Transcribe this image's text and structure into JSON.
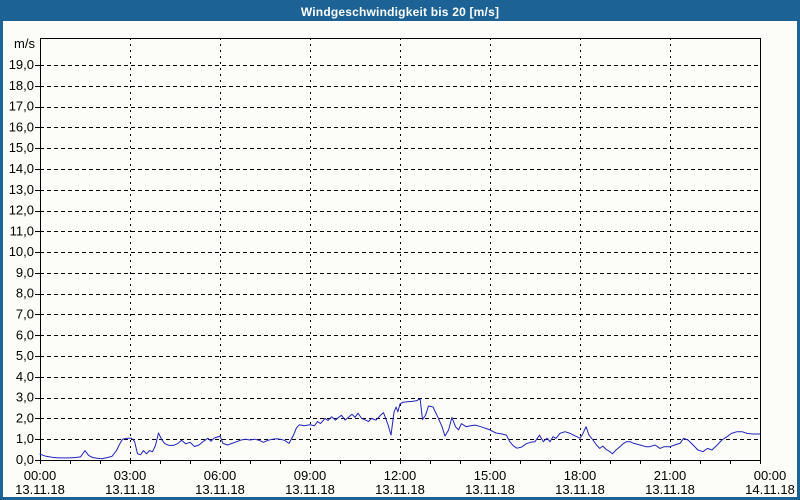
{
  "window": {
    "title": "Windgeschwindigkeit bis 20 [m/s]"
  },
  "colors": {
    "titlebar_blue": "#1d6295",
    "window_background": "#fcfdf8",
    "line_blue": "#2222bb",
    "grid_black": "#000000",
    "title_text": "#ffffff"
  },
  "chart_data": {
    "type": "line",
    "title": "Windgeschwindigkeit bis 20 [m/s]",
    "unit_label": "m/s",
    "xlabel": "",
    "ylabel": "m/s",
    "xlim_hours": [
      0,
      24
    ],
    "ylim": [
      0,
      20.3
    ],
    "grid": "dashed",
    "legend": "none",
    "y_tick_step": 1.0,
    "y_ticks": [
      {
        "value": 0,
        "label": "0,0"
      },
      {
        "value": 1,
        "label": "1,0"
      },
      {
        "value": 2,
        "label": "2,0"
      },
      {
        "value": 3,
        "label": "3,0"
      },
      {
        "value": 4,
        "label": "4,0"
      },
      {
        "value": 5,
        "label": "5,0"
      },
      {
        "value": 6,
        "label": "6,0"
      },
      {
        "value": 7,
        "label": "7,0"
      },
      {
        "value": 8,
        "label": "8,0"
      },
      {
        "value": 9,
        "label": "9,0"
      },
      {
        "value": 10,
        "label": "10,0"
      },
      {
        "value": 11,
        "label": "11,0"
      },
      {
        "value": 12,
        "label": "12,0"
      },
      {
        "value": 13,
        "label": "13,0"
      },
      {
        "value": 14,
        "label": "14,0"
      },
      {
        "value": 15,
        "label": "15,0"
      },
      {
        "value": 16,
        "label": "16,0"
      },
      {
        "value": 17,
        "label": "17,0"
      },
      {
        "value": 18,
        "label": "18,0"
      },
      {
        "value": 19,
        "label": "19,0"
      }
    ],
    "x_minor_tick_every_hours": 1,
    "x_major_ticks": [
      {
        "hour": 0,
        "time": "00:00",
        "date": "13.11.18"
      },
      {
        "hour": 3,
        "time": "03:00",
        "date": "13.11.18"
      },
      {
        "hour": 6,
        "time": "06:00",
        "date": "13.11.18"
      },
      {
        "hour": 9,
        "time": "09:00",
        "date": "13.11.18"
      },
      {
        "hour": 12,
        "time": "12:00",
        "date": "13.11.18"
      },
      {
        "hour": 15,
        "time": "15:00",
        "date": "13.11.18"
      },
      {
        "hour": 18,
        "time": "18:00",
        "date": "13.11.18"
      },
      {
        "hour": 21,
        "time": "21:00",
        "date": "13.11.18"
      },
      {
        "hour": 24,
        "time": "00:00",
        "date": "14.11.18"
      }
    ],
    "series": [
      {
        "name": "Windgeschwindigkeit",
        "unit": "m/s",
        "points": [
          [
            0,
            0.28
          ],
          [
            0.2,
            0.18
          ],
          [
            0.4,
            0.13
          ],
          [
            0.6,
            0.1
          ],
          [
            0.8,
            0.1
          ],
          [
            1,
            0.1
          ],
          [
            1.2,
            0.12
          ],
          [
            1.35,
            0.15
          ],
          [
            1.5,
            0.45
          ],
          [
            1.62,
            0.22
          ],
          [
            1.75,
            0.12
          ],
          [
            1.9,
            0.08
          ],
          [
            2.05,
            0.06
          ],
          [
            2.2,
            0.1
          ],
          [
            2.4,
            0.18
          ],
          [
            2.55,
            0.45
          ],
          [
            2.65,
            0.75
          ],
          [
            2.75,
            1
          ],
          [
            2.9,
            1.05
          ],
          [
            3.05,
            1.05
          ],
          [
            3.15,
            0.9
          ],
          [
            3.25,
            0.3
          ],
          [
            3.35,
            0.25
          ],
          [
            3.45,
            0.45
          ],
          [
            3.55,
            0.3
          ],
          [
            3.65,
            0.45
          ],
          [
            3.75,
            0.4
          ],
          [
            3.85,
            0.7
          ],
          [
            3.95,
            1.3
          ],
          [
            4.05,
            1
          ],
          [
            4.15,
            0.8
          ],
          [
            4.3,
            0.7
          ],
          [
            4.45,
            0.7
          ],
          [
            4.6,
            0.8
          ],
          [
            4.72,
            0.95
          ],
          [
            4.85,
            0.78
          ],
          [
            5,
            0.85
          ],
          [
            5.15,
            0.65
          ],
          [
            5.3,
            0.72
          ],
          [
            5.45,
            0.9
          ],
          [
            5.6,
            1.05
          ],
          [
            5.7,
            0.9
          ],
          [
            5.8,
            1.05
          ],
          [
            5.9,
            1.1
          ],
          [
            6,
            1.15
          ],
          [
            6.1,
            0.8
          ],
          [
            6.25,
            0.72
          ],
          [
            6.4,
            0.8
          ],
          [
            6.55,
            0.88
          ],
          [
            6.7,
            0.96
          ],
          [
            6.85,
            1
          ],
          [
            7,
            0.96
          ],
          [
            7.15,
            1
          ],
          [
            7.3,
            0.95
          ],
          [
            7.45,
            0.85
          ],
          [
            7.6,
            0.95
          ],
          [
            7.75,
            1
          ],
          [
            7.9,
            1.02
          ],
          [
            8,
            1
          ],
          [
            8.15,
            0.95
          ],
          [
            8.3,
            0.8
          ],
          [
            8.45,
            1.2
          ],
          [
            8.55,
            1.55
          ],
          [
            8.65,
            1.7
          ],
          [
            8.8,
            1.65
          ],
          [
            9,
            1.7
          ],
          [
            9.15,
            1.65
          ],
          [
            9.25,
            1.85
          ],
          [
            9.35,
            1.75
          ],
          [
            9.5,
            2
          ],
          [
            9.6,
            1.9
          ],
          [
            9.72,
            2.08
          ],
          [
            9.85,
            1.92
          ],
          [
            9.95,
            2.05
          ],
          [
            10.05,
            2.15
          ],
          [
            10.17,
            1.92
          ],
          [
            10.3,
            2.08
          ],
          [
            10.4,
            2.2
          ],
          [
            10.5,
            2.05
          ],
          [
            10.6,
            2.25
          ],
          [
            10.72,
            2
          ],
          [
            10.85,
            1.92
          ],
          [
            10.95,
            1.85
          ],
          [
            11.05,
            2
          ],
          [
            11.2,
            1.92
          ],
          [
            11.35,
            2.15
          ],
          [
            11.45,
            2.28
          ],
          [
            11.6,
            1.7
          ],
          [
            11.7,
            1.2
          ],
          [
            11.8,
            2.3
          ],
          [
            11.87,
            2.55
          ],
          [
            11.93,
            2.32
          ],
          [
            12,
            2.7
          ],
          [
            12.1,
            2.78
          ],
          [
            12.25,
            2.8
          ],
          [
            12.4,
            2.82
          ],
          [
            12.55,
            2.85
          ],
          [
            12.67,
            2.95
          ],
          [
            12.75,
            1.95
          ],
          [
            12.85,
            2.15
          ],
          [
            12.95,
            2.6
          ],
          [
            13.1,
            2.55
          ],
          [
            13.25,
            2.1
          ],
          [
            13.4,
            1.6
          ],
          [
            13.5,
            1.15
          ],
          [
            13.62,
            1.45
          ],
          [
            13.73,
            2.05
          ],
          [
            13.85,
            1.6
          ],
          [
            13.95,
            1.45
          ],
          [
            14.05,
            1.75
          ],
          [
            14.2,
            1.6
          ],
          [
            14.35,
            1.65
          ],
          [
            14.5,
            1.68
          ],
          [
            14.65,
            1.62
          ],
          [
            14.8,
            1.55
          ],
          [
            15,
            1.45
          ],
          [
            15.2,
            1.3
          ],
          [
            15.4,
            1.25
          ],
          [
            15.55,
            1.2
          ],
          [
            15.65,
            0.9
          ],
          [
            15.78,
            0.68
          ],
          [
            15.9,
            0.57
          ],
          [
            16.05,
            0.62
          ],
          [
            16.2,
            0.78
          ],
          [
            16.35,
            0.85
          ],
          [
            16.5,
            0.88
          ],
          [
            16.65,
            1.2
          ],
          [
            16.78,
            0.88
          ],
          [
            16.9,
            1.05
          ],
          [
            17,
            0.88
          ],
          [
            17.1,
            1.12
          ],
          [
            17.2,
            1.04
          ],
          [
            17.33,
            1.28
          ],
          [
            17.5,
            1.36
          ],
          [
            17.67,
            1.28
          ],
          [
            17.85,
            1.15
          ],
          [
            18,
            1.05
          ],
          [
            18.1,
            1.28
          ],
          [
            18.2,
            1.6
          ],
          [
            18.3,
            1.2
          ],
          [
            18.43,
            0.96
          ],
          [
            18.55,
            0.72
          ],
          [
            18.66,
            0.56
          ],
          [
            18.76,
            0.67
          ],
          [
            18.87,
            0.51
          ],
          [
            19,
            0.4
          ],
          [
            19.08,
            0.3
          ],
          [
            19.2,
            0.48
          ],
          [
            19.33,
            0.64
          ],
          [
            19.45,
            0.8
          ],
          [
            19.55,
            0.88
          ],
          [
            19.67,
            0.88
          ],
          [
            19.8,
            0.8
          ],
          [
            20,
            0.72
          ],
          [
            20.2,
            0.64
          ],
          [
            20.33,
            0.64
          ],
          [
            20.5,
            0.72
          ],
          [
            20.67,
            0.56
          ],
          [
            20.8,
            0.64
          ],
          [
            21,
            0.64
          ],
          [
            21.15,
            0.72
          ],
          [
            21.33,
            0.8
          ],
          [
            21.45,
            1.04
          ],
          [
            21.6,
            0.96
          ],
          [
            21.77,
            0.72
          ],
          [
            21.93,
            0.48
          ],
          [
            22.1,
            0.4
          ],
          [
            22.25,
            0.56
          ],
          [
            22.4,
            0.48
          ],
          [
            22.57,
            0.72
          ],
          [
            22.73,
            0.96
          ],
          [
            22.9,
            1.12
          ],
          [
            23.05,
            1.28
          ],
          [
            23.23,
            1.36
          ],
          [
            23.4,
            1.36
          ],
          [
            23.57,
            1.28
          ],
          [
            23.75,
            1.25
          ],
          [
            24,
            1.25
          ]
        ]
      }
    ]
  }
}
